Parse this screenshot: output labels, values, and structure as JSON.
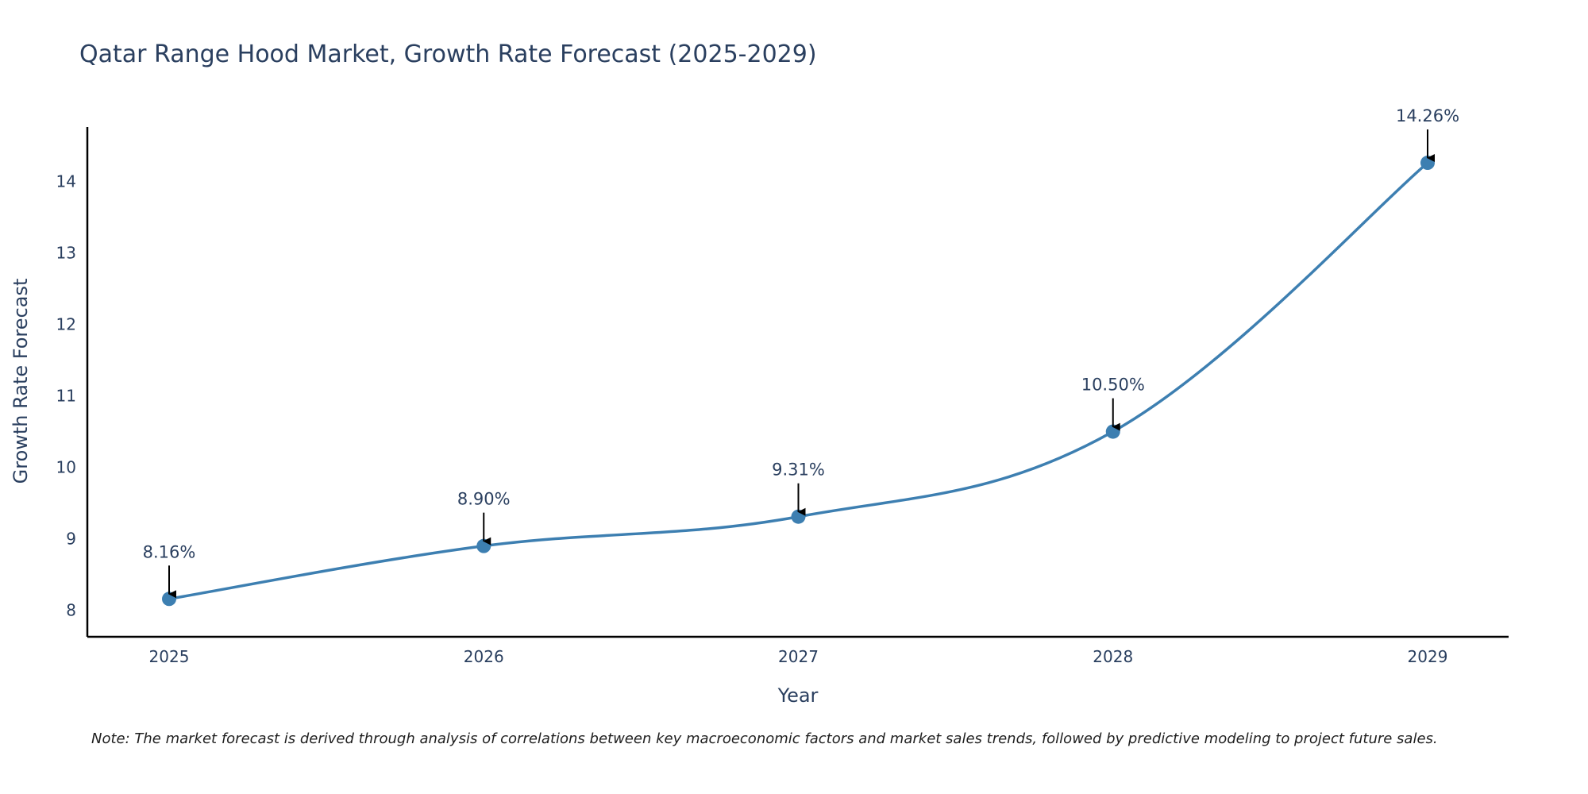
{
  "chart_data": {
    "type": "line",
    "title": "Qatar Range Hood Market, Growth Rate Forecast (2025-2029)",
    "xlabel": "Year",
    "ylabel": "Growth Rate Forecast",
    "categories": [
      "2025",
      "2026",
      "2027",
      "2028",
      "2029"
    ],
    "series": [
      {
        "name": "Growth Rate Forecast",
        "values": [
          8.16,
          8.9,
          9.31,
          10.5,
          14.26
        ],
        "labels": [
          "8.16%",
          "8.90%",
          "9.31%",
          "10.50%",
          "14.26%"
        ]
      }
    ],
    "yticks": [
      8,
      9,
      10,
      11,
      12,
      13,
      14
    ],
    "ylim": [
      7.63,
      14.76
    ],
    "grid": false,
    "line_color": "#3d7fb1",
    "marker_color": "#3d7fb1",
    "arrow_color": "#000000"
  },
  "note": "Note: The market forecast is derived through analysis of correlations between key macroeconomic factors and market sales trends, followed by predictive modeling to project future sales."
}
